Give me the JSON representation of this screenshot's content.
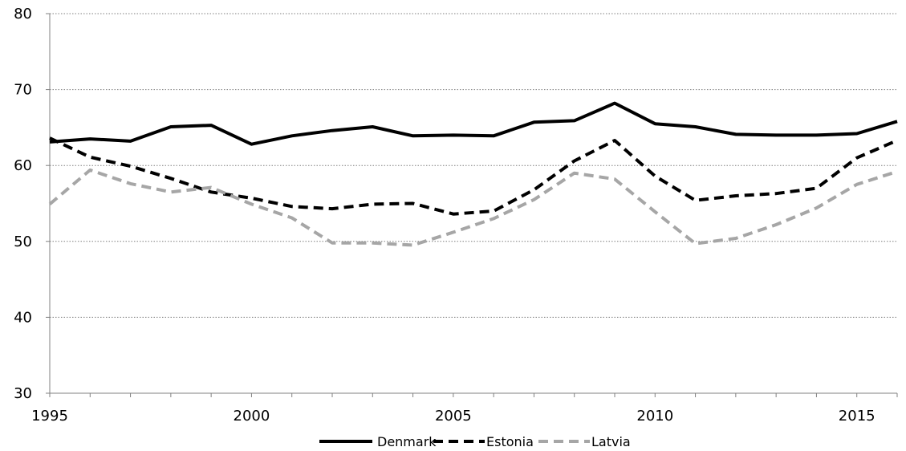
{
  "chart_data": {
    "type": "line",
    "title": "",
    "xlabel": "",
    "ylabel": "",
    "x": [
      1995,
      1996,
      1997,
      1998,
      1999,
      2000,
      2001,
      2002,
      2003,
      2004,
      2005,
      2006,
      2007,
      2008,
      2009,
      2010,
      2011,
      2012,
      2013,
      2014,
      2015,
      2016
    ],
    "xlim": [
      1995,
      2016
    ],
    "ylim": [
      30,
      80
    ],
    "x_ticks": [
      "1995",
      "2000",
      "2005",
      "2010",
      "2015"
    ],
    "y_ticks": [
      "30",
      "40",
      "50",
      "60",
      "70",
      "80"
    ],
    "grid": "horizontal dotted",
    "legend_position": "bottom",
    "series": [
      {
        "name": "Denmark",
        "color": "#000000",
        "style": "solid",
        "values": [
          63.1,
          63.5,
          63.2,
          65.1,
          65.3,
          62.8,
          63.9,
          64.6,
          65.1,
          63.9,
          64.0,
          63.9,
          65.7,
          65.9,
          68.2,
          65.5,
          65.1,
          64.1,
          64.0,
          64.0,
          64.2,
          65.8
        ]
      },
      {
        "name": "Estonia",
        "color": "#000000",
        "style": "dashed",
        "values": [
          63.6,
          61.1,
          59.9,
          58.3,
          56.5,
          55.7,
          54.6,
          54.3,
          54.9,
          55.0,
          53.6,
          54.0,
          56.8,
          60.6,
          63.3,
          58.6,
          55.4,
          56.0,
          56.3,
          57.0,
          61.0,
          63.3
        ]
      },
      {
        "name": "Latvia",
        "color": "#a6a6a6",
        "style": "dashed",
        "values": [
          54.9,
          59.4,
          57.6,
          56.5,
          57.1,
          54.9,
          53.1,
          49.8,
          49.8,
          49.5,
          51.2,
          53.0,
          55.5,
          59.0,
          58.2,
          53.9,
          49.7,
          50.4,
          52.2,
          54.4,
          57.5,
          59.2
        ]
      }
    ]
  }
}
